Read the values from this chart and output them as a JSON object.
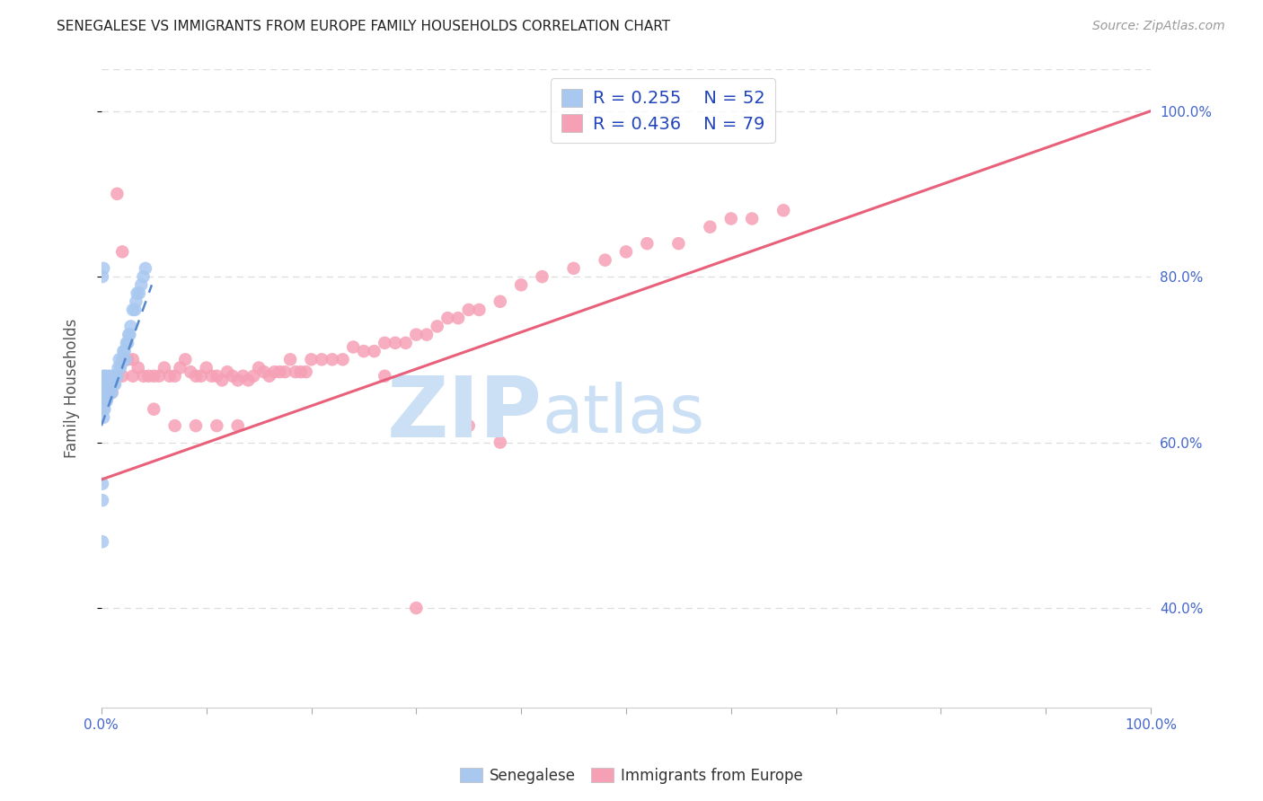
{
  "title": "SENEGALESE VS IMMIGRANTS FROM EUROPE FAMILY HOUSEHOLDS CORRELATION CHART",
  "source": "Source: ZipAtlas.com",
  "ylabel": "Family Households",
  "blue_color": "#a8c8f0",
  "pink_color": "#f5a0b5",
  "blue_line_color": "#5588cc",
  "pink_line_color": "#e8607a",
  "grid_color": "#dddddd",
  "background_color": "#ffffff",
  "legend_label_color": "#2244bb",
  "axis_label_color": "#4466cc",
  "watermark_color": "#cce0f5",
  "senegalese_x": [
    0.001,
    0.001,
    0.001,
    0.002,
    0.002,
    0.002,
    0.002,
    0.003,
    0.003,
    0.003,
    0.004,
    0.004,
    0.004,
    0.005,
    0.005,
    0.006,
    0.006,
    0.007,
    0.007,
    0.008,
    0.008,
    0.009,
    0.01,
    0.01,
    0.011,
    0.012,
    0.013,
    0.014,
    0.015,
    0.016,
    0.017,
    0.018,
    0.019,
    0.02,
    0.021,
    0.022,
    0.023,
    0.024,
    0.025,
    0.026,
    0.027,
    0.028,
    0.03,
    0.032,
    0.033,
    0.034,
    0.036,
    0.038,
    0.04,
    0.042,
    0.001,
    0.002
  ],
  "senegalese_y": [
    0.48,
    0.53,
    0.55,
    0.63,
    0.64,
    0.66,
    0.68,
    0.64,
    0.65,
    0.67,
    0.65,
    0.66,
    0.68,
    0.65,
    0.67,
    0.655,
    0.67,
    0.66,
    0.68,
    0.66,
    0.67,
    0.67,
    0.66,
    0.68,
    0.67,
    0.67,
    0.67,
    0.68,
    0.68,
    0.69,
    0.7,
    0.69,
    0.695,
    0.7,
    0.71,
    0.71,
    0.7,
    0.72,
    0.72,
    0.73,
    0.73,
    0.74,
    0.76,
    0.76,
    0.77,
    0.78,
    0.78,
    0.79,
    0.8,
    0.81,
    0.8,
    0.81
  ],
  "europe_x": [
    0.01,
    0.015,
    0.02,
    0.02,
    0.025,
    0.03,
    0.035,
    0.04,
    0.045,
    0.05,
    0.055,
    0.06,
    0.065,
    0.07,
    0.075,
    0.08,
    0.085,
    0.09,
    0.095,
    0.1,
    0.105,
    0.11,
    0.115,
    0.12,
    0.125,
    0.13,
    0.135,
    0.14,
    0.145,
    0.15,
    0.155,
    0.16,
    0.165,
    0.17,
    0.175,
    0.18,
    0.185,
    0.19,
    0.195,
    0.2,
    0.21,
    0.22,
    0.23,
    0.24,
    0.25,
    0.26,
    0.27,
    0.28,
    0.29,
    0.3,
    0.31,
    0.32,
    0.33,
    0.34,
    0.35,
    0.36,
    0.38,
    0.4,
    0.42,
    0.45,
    0.48,
    0.5,
    0.52,
    0.55,
    0.58,
    0.6,
    0.62,
    0.65,
    0.3,
    0.27,
    0.3,
    0.35,
    0.38,
    0.03,
    0.05,
    0.07,
    0.09,
    0.11,
    0.13
  ],
  "europe_y": [
    0.66,
    0.9,
    0.68,
    0.83,
    0.7,
    0.68,
    0.69,
    0.68,
    0.68,
    0.68,
    0.68,
    0.69,
    0.68,
    0.68,
    0.69,
    0.7,
    0.685,
    0.68,
    0.68,
    0.69,
    0.68,
    0.68,
    0.675,
    0.685,
    0.68,
    0.675,
    0.68,
    0.675,
    0.68,
    0.69,
    0.685,
    0.68,
    0.685,
    0.685,
    0.685,
    0.7,
    0.685,
    0.685,
    0.685,
    0.7,
    0.7,
    0.7,
    0.7,
    0.715,
    0.71,
    0.71,
    0.72,
    0.72,
    0.72,
    0.73,
    0.73,
    0.74,
    0.75,
    0.75,
    0.76,
    0.76,
    0.77,
    0.79,
    0.8,
    0.81,
    0.82,
    0.83,
    0.84,
    0.84,
    0.86,
    0.87,
    0.87,
    0.88,
    0.4,
    0.68,
    0.64,
    0.62,
    0.6,
    0.7,
    0.64,
    0.62,
    0.62,
    0.62,
    0.62
  ],
  "xlim": [
    0.0,
    1.0
  ],
  "ylim": [
    0.28,
    1.05
  ],
  "yticks": [
    0.4,
    0.6,
    0.8,
    1.0
  ],
  "yticklabels": [
    "40.0%",
    "60.0%",
    "80.0%",
    "100.0%"
  ],
  "pink_line_x": [
    0.0,
    1.0
  ],
  "pink_line_y": [
    0.555,
    1.0
  ],
  "blue_line_x": [
    0.0,
    0.048
  ],
  "blue_line_y": [
    0.62,
    0.79
  ]
}
